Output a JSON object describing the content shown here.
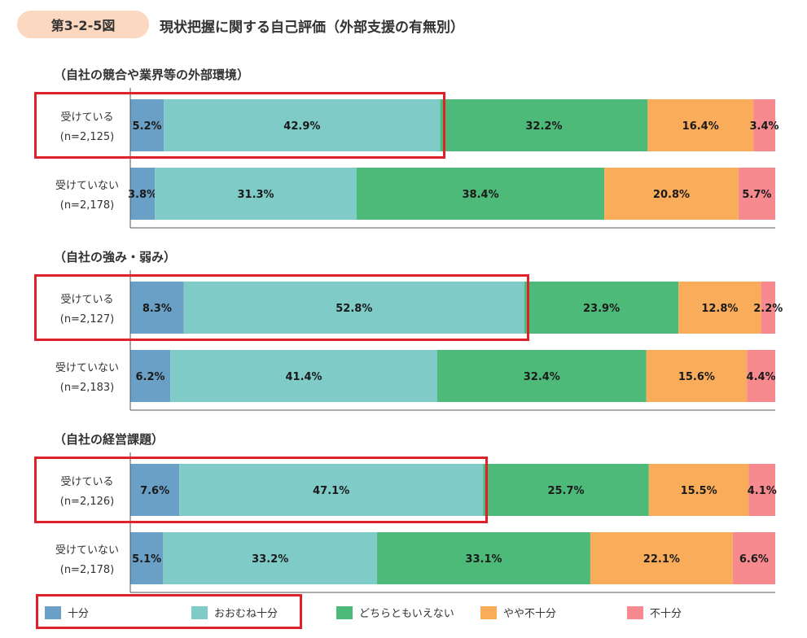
{
  "header": {
    "figure_number": "第3-2-5図",
    "title": "現状把握に関する自己評価（外部支援の有無別）"
  },
  "colors": {
    "badge_bg": "#fbd8bf",
    "highlight": "#e0202a",
    "categories": [
      "#6a9fc6",
      "#7fcbc7",
      "#4dba7a",
      "#f9ad5b",
      "#f78a8f"
    ]
  },
  "chart_data": {
    "type": "bar",
    "orientation": "horizontal",
    "stacked": true,
    "normalized": true,
    "categories": [
      "十分",
      "おおむね十分",
      "どちらともいえない",
      "やや不十分",
      "不十分"
    ],
    "legend_position": "bottom",
    "groups": [
      {
        "title": "（自社の競合や業界等の外部環境）",
        "rows": [
          {
            "label": "受けている",
            "n": "(n=2,125)",
            "values": [
              5.2,
              42.9,
              32.2,
              16.4,
              3.4
            ],
            "highlight": true
          },
          {
            "label": "受けていない",
            "n": "(n=2,178)",
            "values": [
              3.8,
              31.3,
              38.4,
              20.8,
              5.7
            ],
            "highlight": false
          }
        ]
      },
      {
        "title": "（自社の強み・弱み）",
        "rows": [
          {
            "label": "受けている",
            "n": "(n=2,127)",
            "values": [
              8.3,
              52.8,
              23.9,
              12.8,
              2.2
            ],
            "highlight": true
          },
          {
            "label": "受けていない",
            "n": "(n=2,183)",
            "values": [
              6.2,
              41.4,
              32.4,
              15.6,
              4.4
            ],
            "highlight": false
          }
        ]
      },
      {
        "title": "（自社の経営課題）",
        "rows": [
          {
            "label": "受けている",
            "n": "(n=2,126)",
            "values": [
              7.6,
              47.1,
              25.7,
              15.5,
              4.1
            ],
            "highlight": true
          },
          {
            "label": "受けていない",
            "n": "(n=2,178)",
            "values": [
              5.1,
              33.2,
              33.1,
              22.1,
              6.6
            ],
            "highlight": false
          }
        ]
      }
    ]
  }
}
